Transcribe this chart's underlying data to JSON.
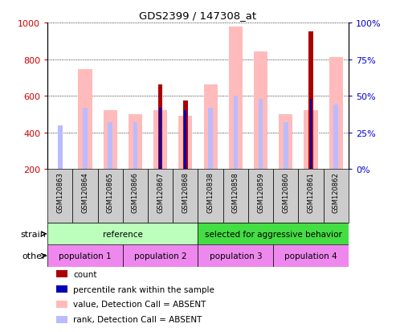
{
  "title": "GDS2399 / 147308_at",
  "samples": [
    "GSM120863",
    "GSM120864",
    "GSM120865",
    "GSM120866",
    "GSM120867",
    "GSM120868",
    "GSM120838",
    "GSM120858",
    "GSM120859",
    "GSM120860",
    "GSM120861",
    "GSM120862"
  ],
  "count_values": [
    0,
    0,
    0,
    0,
    660,
    575,
    0,
    0,
    0,
    0,
    950,
    0
  ],
  "rank_values": [
    0,
    0,
    0,
    0,
    42,
    40,
    0,
    0,
    0,
    0,
    48,
    0
  ],
  "absent_value": [
    200,
    745,
    520,
    500,
    520,
    490,
    660,
    980,
    840,
    500,
    520,
    810
  ],
  "absent_rank": [
    30,
    42,
    32,
    32,
    40,
    40,
    42,
    50,
    48,
    32,
    0,
    44
  ],
  "special_rank": [
    30,
    0,
    0,
    0,
    0,
    0,
    0,
    0,
    0,
    0,
    0,
    0
  ],
  "ylim_left": [
    200,
    1000
  ],
  "ylim_right": [
    0,
    100
  ],
  "yticks_left": [
    200,
    400,
    600,
    800,
    1000
  ],
  "yticks_right": [
    0,
    25,
    50,
    75,
    100
  ],
  "bar_color_count": "#aa0000",
  "bar_color_rank": "#0000bb",
  "bar_color_absent_val": "#ffbbbb",
  "bar_color_absent_rank": "#bbbbff",
  "axis_left_color": "#cc0000",
  "axis_right_color": "#0000cc",
  "strain_labels": [
    "reference",
    "selected for aggressive behavior"
  ],
  "strain_colors": [
    "#bbffbb",
    "#44dd44"
  ],
  "pop_labels": [
    "population 1",
    "population 2",
    "population 3",
    "population 4"
  ],
  "pop_color": "#ee88ee",
  "legend_labels": [
    "count",
    "percentile rank within the sample",
    "value, Detection Call = ABSENT",
    "rank, Detection Call = ABSENT"
  ],
  "legend_colors": [
    "#aa0000",
    "#0000bb",
    "#ffbbbb",
    "#bbbbff"
  ]
}
